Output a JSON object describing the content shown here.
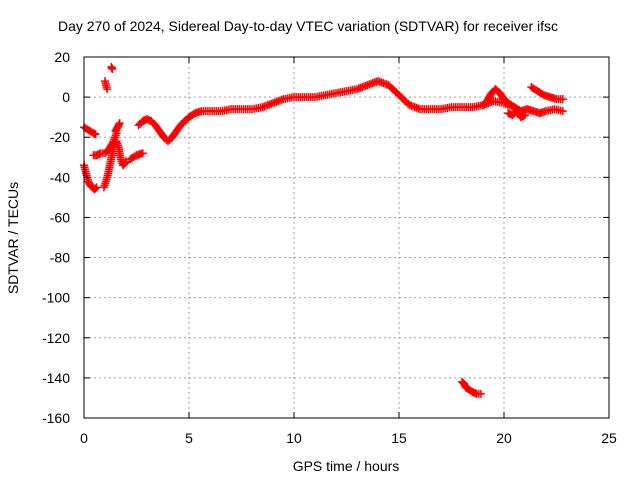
{
  "chart_data": {
    "type": "scatter",
    "title": "Day 270 of 2024, Sidereal Day-to-day VTEC variation (SDTVAR) for receiver ifsc",
    "xlabel": "GPS time / hours",
    "ylabel": "SDTVAR / TECUs",
    "xlim": [
      0,
      25
    ],
    "ylim": [
      -160,
      20
    ],
    "xticks": [
      "0",
      "5",
      "10",
      "15",
      "20",
      "25"
    ],
    "yticks": [
      "20",
      "0",
      "-20",
      "-40",
      "-60",
      "-80",
      "-100",
      "-120",
      "-140",
      "-160"
    ],
    "grid": true,
    "marker": "+",
    "colors": {
      "series": "#ff0000",
      "axes": "#000000",
      "grid": "#a0a0a0"
    },
    "segments": [
      {
        "x": [
          0.0,
          0.15,
          0.3,
          0.45,
          0.55
        ],
        "y": [
          -15,
          -16,
          -17,
          -18,
          -18.5
        ]
      },
      {
        "x": [
          0.0,
          0.1,
          0.2,
          0.3,
          0.4,
          0.5,
          0.6
        ],
        "y": [
          -34,
          -38,
          -42,
          -44,
          -45,
          -46,
          -45
        ]
      },
      {
        "x": [
          0.45,
          0.6,
          0.8,
          1.0,
          1.2,
          1.4,
          1.55
        ],
        "y": [
          -29,
          -29,
          -28,
          -28,
          -26,
          -22,
          -18
        ]
      },
      {
        "x": [
          0.95,
          1.05,
          1.15,
          1.25,
          1.35,
          1.45,
          1.55,
          1.65,
          1.75,
          1.85,
          1.95,
          2.0
        ],
        "y": [
          -45,
          -42,
          -38,
          -33,
          -28,
          -24,
          -22,
          -25,
          -31,
          -34,
          -33,
          -32
        ]
      },
      {
        "x": [
          1.5,
          1.6,
          1.7
        ],
        "y": [
          -17,
          -15,
          -13
        ]
      },
      {
        "x": [
          1.0,
          1.05,
          1.1
        ],
        "y": [
          8,
          6,
          4
        ]
      },
      {
        "x": [
          1.3,
          1.35
        ],
        "y": [
          15,
          14
        ]
      },
      {
        "x": [
          2.2,
          2.5,
          2.8
        ],
        "y": [
          -31,
          -29,
          -28
        ]
      },
      {
        "x": [
          2.6,
          2.8,
          3.0,
          3.2,
          3.4,
          3.6,
          3.8,
          4.0,
          4.2,
          4.4,
          4.6,
          4.8,
          5.0,
          5.3,
          5.6,
          6.0,
          6.5,
          7.0,
          7.5,
          8.0,
          8.5,
          9.0,
          9.5,
          10.0,
          10.5,
          11.0,
          11.5,
          12.0,
          12.5,
          13.0,
          13.5,
          14.0,
          14.5,
          15.0,
          15.5,
          16.0,
          16.5,
          17.0,
          17.5,
          18.0,
          18.5,
          19.0,
          19.5,
          20.0,
          20.5
        ],
        "y": [
          -14,
          -12,
          -11,
          -12,
          -14,
          -17,
          -20,
          -22,
          -20,
          -17,
          -14,
          -12,
          -10,
          -8,
          -7,
          -7,
          -7,
          -6,
          -6,
          -6,
          -5,
          -3,
          -1,
          0,
          0,
          0,
          1,
          2,
          3,
          4,
          6,
          8,
          6,
          1,
          -4,
          -6,
          -6,
          -6,
          -5,
          -5,
          -5,
          -4,
          -2,
          -3,
          -5
        ]
      },
      {
        "x": [
          18.0,
          18.1,
          18.2,
          18.35,
          18.5,
          18.7,
          18.9
        ],
        "y": [
          -142,
          -143,
          -145,
          -146,
          -147,
          -148,
          -148
        ]
      },
      {
        "x": [
          19.0,
          19.2,
          19.4,
          19.6,
          19.8,
          20.0,
          20.2,
          20.5,
          20.8,
          21.1,
          21.4,
          21.7,
          22.0,
          22.4,
          22.8
        ],
        "y": [
          -4,
          -2,
          2,
          4,
          2,
          -1,
          -3,
          -5,
          -7,
          -6,
          -7,
          -8,
          -7,
          -6,
          -7
        ]
      },
      {
        "x": [
          20.2,
          20.4,
          20.6,
          20.8,
          21.0
        ],
        "y": [
          -8,
          -9,
          -7,
          -10,
          -9
        ]
      },
      {
        "x": [
          21.3,
          21.6,
          21.9,
          22.2,
          22.5,
          22.8
        ],
        "y": [
          5,
          3,
          1,
          0,
          -1,
          -1
        ]
      }
    ]
  }
}
